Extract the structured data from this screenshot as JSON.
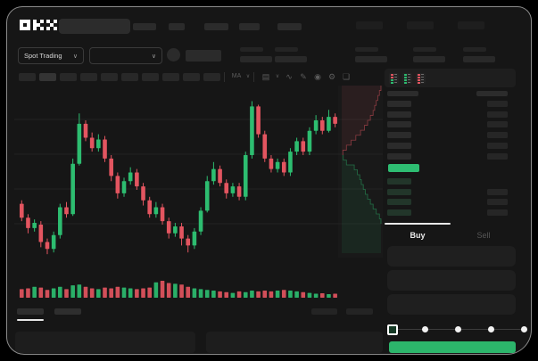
{
  "app": {
    "name": "OKX",
    "logo_text": "OKX"
  },
  "colors": {
    "green": "#2dbd70",
    "red": "#e35560",
    "buy_button_green": "#2cb56b",
    "last_price_green": "#2ebd72",
    "bid_row_green": "#22362a",
    "background": "#161616",
    "depth_ask_line": "rgba(227,85,96,0.55)",
    "depth_ask_fill": "rgba(227,85,96,0.09)",
    "depth_bid_line": "rgba(45,189,112,0.5)",
    "depth_bid_fill": "rgba(45,189,112,0.09)"
  },
  "topnav": {
    "nav_item_count": 5,
    "right_item_count": 3
  },
  "subheader": {
    "spot_trading_label": "Spot Trading",
    "chevron": "∨",
    "ticker_stat_count": 5
  },
  "toolbar": {
    "timeframe_count": 10,
    "active_timeframe_index": 1,
    "icons": [
      {
        "name": "ma-indicator-label",
        "glyph": "MA"
      },
      {
        "name": "chevron-down-icon",
        "glyph": "∨"
      },
      {
        "name": "divider",
        "glyph": ""
      },
      {
        "name": "chart-style-icon",
        "glyph": "▤"
      },
      {
        "name": "chevron-down-icon",
        "glyph": "∨"
      },
      {
        "name": "wave-line-icon",
        "glyph": "∿"
      },
      {
        "name": "draw-pencil-icon",
        "glyph": "✎"
      },
      {
        "name": "camera-icon",
        "glyph": "◉"
      },
      {
        "name": "settings-gear-icon",
        "glyph": "⚙"
      },
      {
        "name": "fullscreen-icon",
        "glyph": "❏"
      }
    ]
  },
  "chart_data": {
    "type": "candlestick",
    "title": "",
    "axis_labels_visible": false,
    "grid": "horizontal-faint",
    "price_norm_range": [
      0,
      100
    ],
    "candles_ochl_note": "each candle = [open, close, low, high] on 0-100 normalized price scale, left to right",
    "candles": [
      [
        32,
        24,
        22,
        34
      ],
      [
        24,
        18,
        15,
        26
      ],
      [
        18,
        21,
        16,
        23
      ],
      [
        20,
        10,
        7,
        22
      ],
      [
        10,
        6,
        3,
        12
      ],
      [
        6,
        14,
        4,
        16
      ],
      [
        14,
        30,
        12,
        32
      ],
      [
        30,
        26,
        24,
        33
      ],
      [
        26,
        55,
        25,
        58
      ],
      [
        55,
        78,
        54,
        84
      ],
      [
        78,
        70,
        68,
        80
      ],
      [
        70,
        64,
        62,
        73
      ],
      [
        64,
        69,
        62,
        72
      ],
      [
        69,
        58,
        56,
        71
      ],
      [
        58,
        48,
        45,
        60
      ],
      [
        48,
        38,
        35,
        50
      ],
      [
        38,
        45,
        36,
        47
      ],
      [
        45,
        50,
        43,
        53
      ],
      [
        50,
        42,
        40,
        52
      ],
      [
        42,
        34,
        31,
        44
      ],
      [
        34,
        26,
        24,
        36
      ],
      [
        26,
        30,
        24,
        33
      ],
      [
        30,
        22,
        20,
        32
      ],
      [
        22,
        15,
        12,
        24
      ],
      [
        15,
        19,
        13,
        21
      ],
      [
        19,
        12,
        8,
        21
      ],
      [
        12,
        8,
        4,
        14
      ],
      [
        8,
        16,
        6,
        18
      ],
      [
        16,
        28,
        14,
        30
      ],
      [
        28,
        45,
        27,
        48
      ],
      [
        45,
        52,
        43,
        56
      ],
      [
        52,
        44,
        42,
        54
      ],
      [
        44,
        38,
        35,
        46
      ],
      [
        38,
        42,
        36,
        44
      ],
      [
        42,
        36,
        34,
        44
      ],
      [
        36,
        60,
        34,
        62
      ],
      [
        60,
        88,
        58,
        91
      ],
      [
        88,
        72,
        70,
        89
      ],
      [
        72,
        58,
        56,
        74
      ],
      [
        58,
        52,
        50,
        60
      ],
      [
        52,
        56,
        50,
        58
      ],
      [
        56,
        50,
        48,
        58
      ],
      [
        50,
        62,
        48,
        64
      ],
      [
        62,
        68,
        60,
        70
      ],
      [
        68,
        62,
        60,
        70
      ],
      [
        62,
        74,
        60,
        76
      ],
      [
        74,
        80,
        72,
        83
      ],
      [
        80,
        74,
        72,
        82
      ],
      [
        74,
        82,
        73,
        86
      ],
      [
        82,
        78,
        76,
        84
      ]
    ],
    "volume_norm": [
      0.45,
      0.5,
      0.6,
      0.55,
      0.4,
      0.5,
      0.6,
      0.45,
      0.7,
      0.75,
      0.6,
      0.5,
      0.45,
      0.55,
      0.5,
      0.6,
      0.55,
      0.5,
      0.45,
      0.5,
      0.55,
      0.9,
      1.0,
      0.85,
      0.8,
      0.75,
      0.6,
      0.5,
      0.45,
      0.4,
      0.35,
      0.3,
      0.25,
      0.2,
      0.3,
      0.25,
      0.35,
      0.3,
      0.35,
      0.3,
      0.35,
      0.4,
      0.35,
      0.3,
      0.25,
      0.2,
      0.15,
      0.18,
      0.12,
      0.15
    ],
    "depth_overlay": {
      "orientation": "vertical",
      "asks_widths_top_to_mid": [
        1.0,
        0.96,
        0.92,
        0.88,
        0.84,
        0.8,
        0.73,
        0.66,
        0.58,
        0.48,
        0.36,
        0.24,
        0.12,
        0.03
      ],
      "bids_widths_mid_to_bottom": [
        0.04,
        0.12,
        0.32,
        0.4,
        0.46,
        0.5,
        0.55,
        0.6,
        0.66,
        0.73,
        0.8,
        0.88,
        0.96,
        1.0
      ]
    }
  },
  "orderbook": {
    "view_modes": [
      {
        "name": "view-combined",
        "squares": [
          "red",
          "red",
          "green",
          "green"
        ]
      },
      {
        "name": "view-bids-only",
        "squares": [
          "green",
          "green",
          "green",
          "green"
        ]
      },
      {
        "name": "view-asks-only",
        "squares": [
          "red",
          "red",
          "red",
          "red"
        ]
      }
    ],
    "header_column_count": 2,
    "asks": [
      {
        "has_amount": true
      },
      {
        "has_amount": true
      },
      {
        "has_amount": true
      },
      {
        "has_amount": true
      },
      {
        "has_amount": true
      },
      {
        "has_amount": true
      }
    ],
    "last_price_highlight": {
      "side": "buy"
    },
    "bids": [
      {
        "has_amount": false
      },
      {
        "has_amount": true
      },
      {
        "has_amount": true
      },
      {
        "has_amount": true
      }
    ]
  },
  "trade_panel": {
    "tabs": [
      {
        "label": "Buy",
        "active": true
      },
      {
        "label": "Sell",
        "active": false
      }
    ],
    "field_count": 3,
    "slider": {
      "stops": 5,
      "active_index": 0
    }
  },
  "bottom_section": {
    "tab_count": 2,
    "active_tab_index": 0,
    "meta_bar_count": 2,
    "panel_count": 2
  }
}
